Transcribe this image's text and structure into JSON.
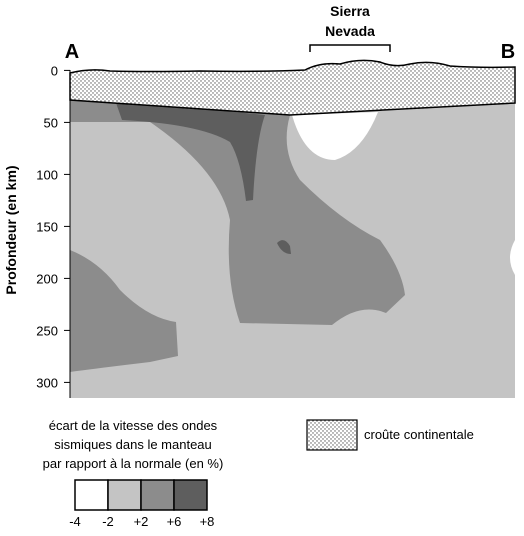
{
  "labels": {
    "left": "A",
    "right": "B",
    "range": [
      "Sierra",
      "Nevada"
    ]
  },
  "depth_axis": {
    "label": "Profondeur (en km)",
    "range": [
      -10,
      315
    ],
    "ticks": [
      0,
      50,
      100,
      150,
      200,
      250,
      300
    ]
  },
  "legend": {
    "velocity_title": [
      "écart de la vitesse des ondes",
      "sismiques dans le manteau",
      "par rapport à la normale (en %)"
    ],
    "scale": [
      "-4",
      "-2",
      "+2",
      "+6",
      "+8"
    ],
    "crust": "croûte continentale"
  }
}
